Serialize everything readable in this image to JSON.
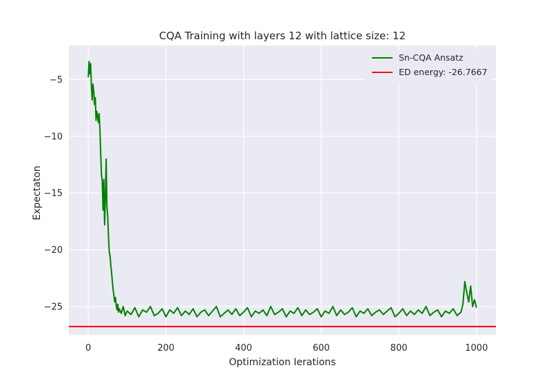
{
  "chart_data": {
    "type": "line",
    "title": "CQA Training with layers 12 with lattice size: 12",
    "xlabel": "Optimization Ierations",
    "ylabel": "Expectaton",
    "xlim": [
      -50,
      1050
    ],
    "ylim": [
      -27.5,
      -2.0
    ],
    "xticks": [
      0,
      200,
      400,
      600,
      800,
      1000
    ],
    "yticks": [
      -5,
      -10,
      -15,
      -20,
      -25
    ],
    "grid": true,
    "background": "#eaeaf2",
    "legend_position": "top-right",
    "series": [
      {
        "name": "Sn-CQA Ansatz",
        "color": "#008000",
        "x": [
          0,
          2,
          4,
          6,
          8,
          10,
          12,
          14,
          16,
          18,
          20,
          22,
          24,
          26,
          28,
          30,
          32,
          34,
          36,
          38,
          40,
          42,
          44,
          46,
          48,
          50,
          52,
          54,
          56,
          58,
          60,
          62,
          64,
          66,
          68,
          70,
          72,
          74,
          76,
          78,
          80,
          85,
          90,
          95,
          100,
          110,
          120,
          130,
          140,
          150,
          160,
          170,
          180,
          190,
          200,
          210,
          220,
          230,
          240,
          250,
          260,
          270,
          280,
          290,
          300,
          310,
          320,
          330,
          340,
          350,
          360,
          370,
          380,
          390,
          400,
          410,
          420,
          430,
          440,
          450,
          460,
          470,
          480,
          490,
          500,
          510,
          520,
          530,
          540,
          550,
          560,
          570,
          580,
          590,
          600,
          610,
          620,
          630,
          640,
          650,
          660,
          670,
          680,
          690,
          700,
          710,
          720,
          730,
          740,
          750,
          760,
          770,
          780,
          790,
          800,
          810,
          820,
          830,
          840,
          850,
          860,
          870,
          880,
          890,
          900,
          910,
          920,
          930,
          940,
          950,
          960,
          965,
          970,
          975,
          980,
          985,
          990,
          995,
          1000
        ],
        "values": [
          -4.8,
          -3.4,
          -4.5,
          -3.6,
          -5.5,
          -6.8,
          -5.4,
          -6.0,
          -7.2,
          -6.6,
          -8.6,
          -7.8,
          -8.2,
          -8.8,
          -8.0,
          -9.5,
          -11.5,
          -13.4,
          -14.0,
          -16.5,
          -13.8,
          -17.8,
          -15.5,
          -12.0,
          -16.2,
          -17.0,
          -18.8,
          -20.2,
          -20.5,
          -21.4,
          -22.0,
          -22.8,
          -23.5,
          -24.0,
          -24.6,
          -24.2,
          -24.9,
          -25.3,
          -24.8,
          -25.5,
          -25.2,
          -25.6,
          -25.0,
          -25.8,
          -25.4,
          -25.7,
          -25.1,
          -25.9,
          -25.3,
          -25.5,
          -25.0,
          -25.8,
          -25.6,
          -25.2,
          -25.9,
          -25.3,
          -25.6,
          -25.1,
          -25.8,
          -25.4,
          -25.7,
          -25.2,
          -25.9,
          -25.5,
          -25.3,
          -25.8,
          -25.4,
          -25.0,
          -25.9,
          -25.6,
          -25.3,
          -25.7,
          -25.2,
          -25.8,
          -25.5,
          -25.1,
          -25.9,
          -25.4,
          -25.6,
          -25.3,
          -25.8,
          -25.0,
          -25.7,
          -25.5,
          -25.2,
          -25.9,
          -25.4,
          -25.6,
          -25.1,
          -25.8,
          -25.3,
          -25.7,
          -25.5,
          -25.2,
          -25.9,
          -25.4,
          -25.6,
          -25.0,
          -25.8,
          -25.3,
          -25.7,
          -25.5,
          -25.1,
          -25.9,
          -25.4,
          -25.6,
          -25.2,
          -25.8,
          -25.5,
          -25.3,
          -25.7,
          -25.4,
          -25.1,
          -25.9,
          -25.6,
          -25.2,
          -25.8,
          -25.4,
          -25.7,
          -25.3,
          -25.6,
          -25.0,
          -25.8,
          -25.5,
          -25.3,
          -25.9,
          -25.4,
          -25.6,
          -25.2,
          -25.8,
          -25.5,
          -24.8,
          -22.8,
          -23.8,
          -24.6,
          -23.2,
          -25.0,
          -24.4,
          -25.1
        ]
      },
      {
        "name": "ED energy: -26.7667",
        "color": "#ff0000",
        "hline": -26.7667
      }
    ]
  }
}
